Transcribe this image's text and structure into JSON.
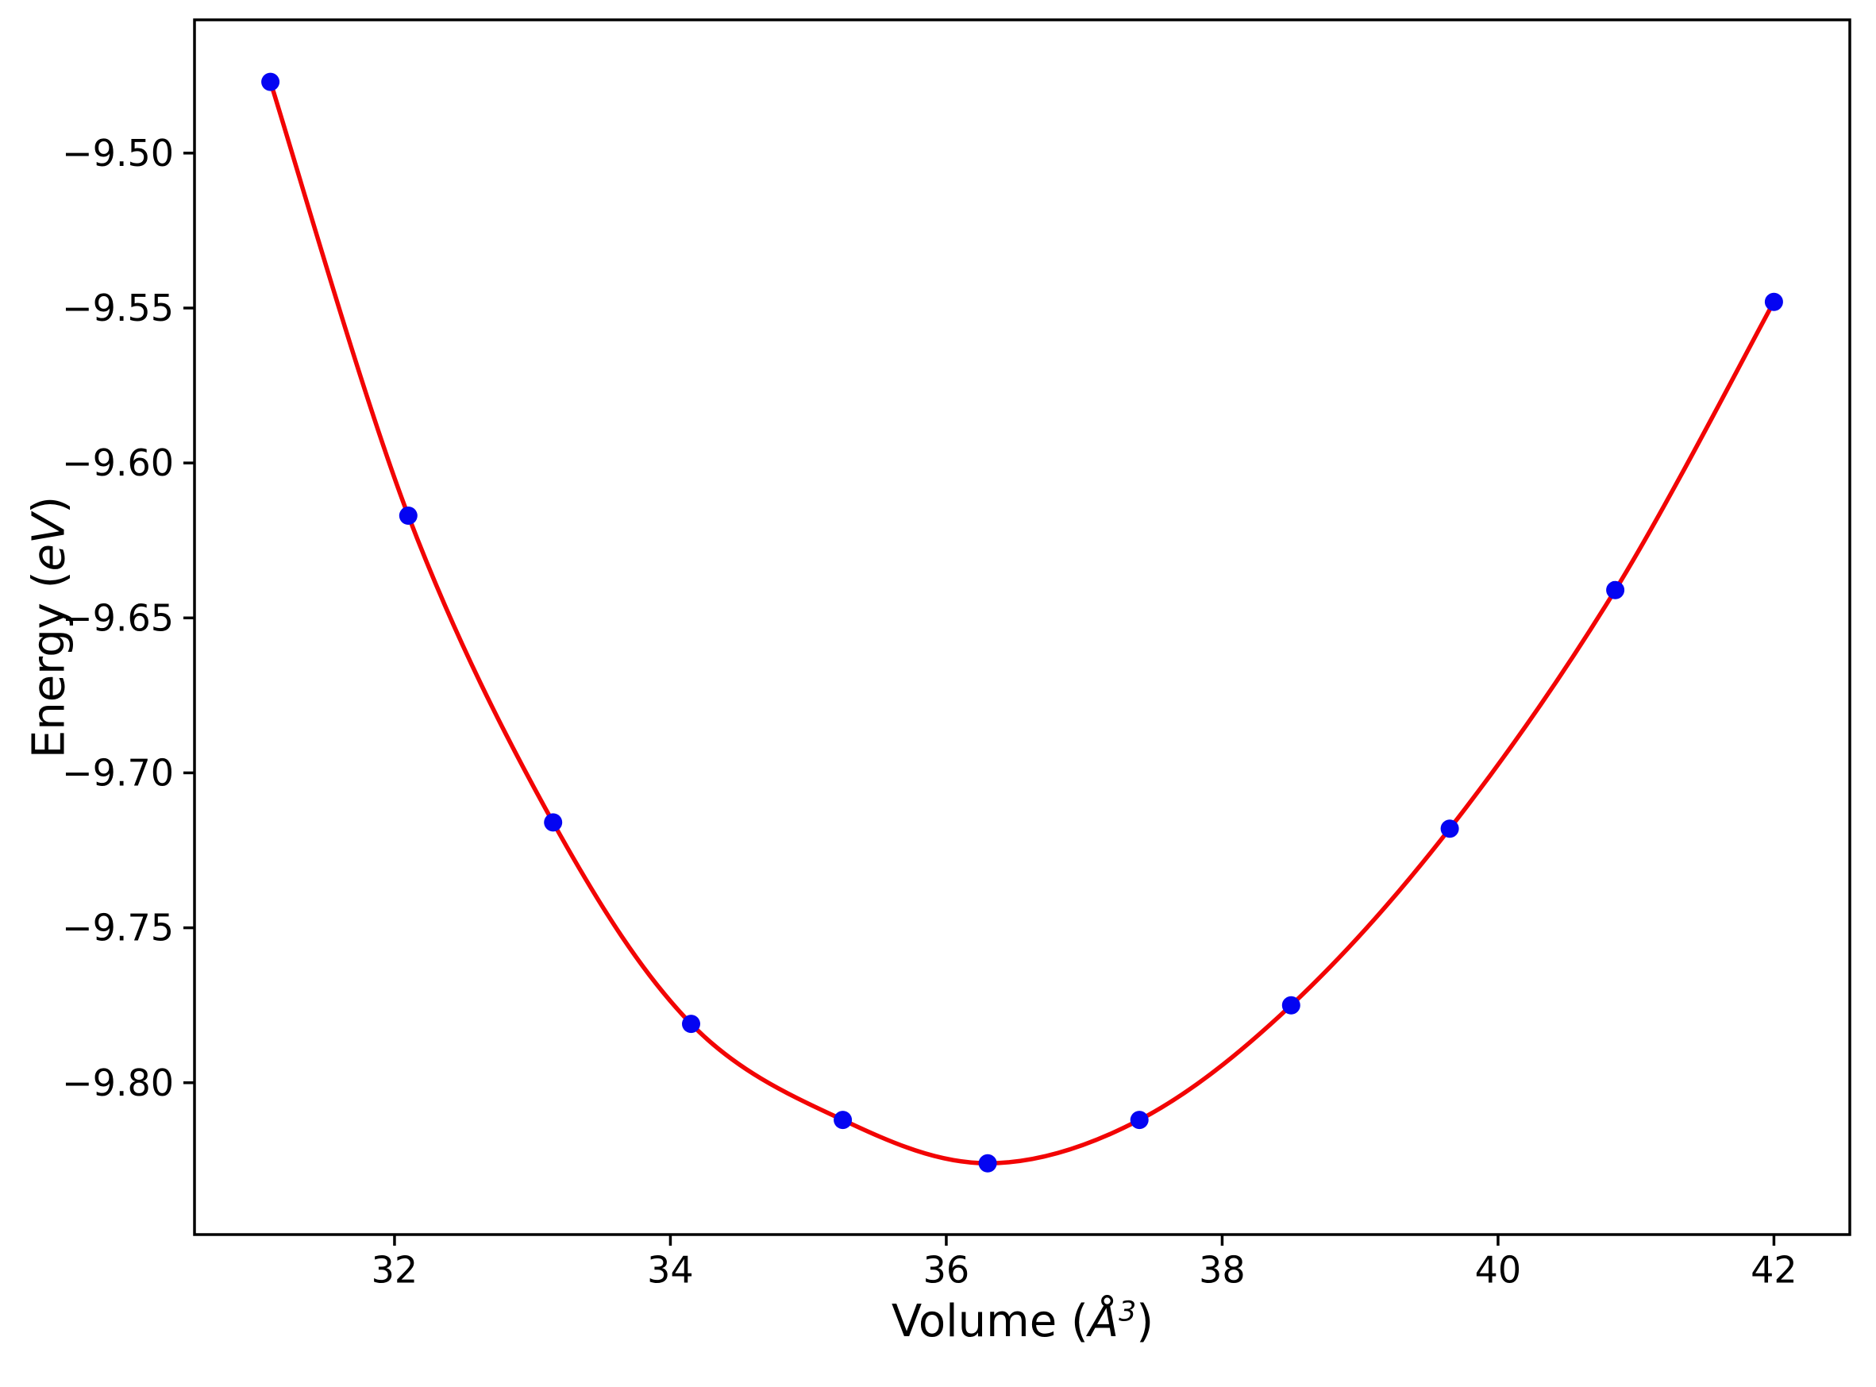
{
  "chart_data": {
    "type": "scatter",
    "title": "",
    "xlabel": "Volume (Å³)",
    "xlabel_parts": {
      "prefix": "Volume (",
      "symbol": "Å",
      "exponent": "3",
      "suffix": ")"
    },
    "ylabel": "Energy (eV)",
    "ylabel_parts": {
      "prefix": "Energy (",
      "math": "eV",
      "suffix": ")"
    },
    "xlim": [
      30.55,
      42.55
    ],
    "ylim": [
      -9.849,
      -9.457
    ],
    "grid": false,
    "legend": "none",
    "xticks": {
      "values": [
        32,
        34,
        36,
        38,
        40,
        42
      ],
      "labels": [
        "32",
        "34",
        "36",
        "38",
        "40",
        "42"
      ]
    },
    "yticks": {
      "values": [
        -9.5,
        -9.55,
        -9.6,
        -9.65,
        -9.7,
        -9.75,
        -9.8
      ],
      "labels": [
        "−9.50",
        "−9.55",
        "−9.60",
        "−9.65",
        "−9.70",
        "−9.75",
        "−9.80"
      ]
    },
    "series": [
      {
        "name": "calculated-energies",
        "type": "scatter",
        "marker": "circle",
        "color": "#0404f2",
        "x": [
          31.1,
          32.1,
          33.15,
          34.15,
          35.25,
          36.3,
          37.4,
          38.5,
          39.65,
          40.85,
          42.0
        ],
        "y": [
          -9.477,
          -9.617,
          -9.716,
          -9.781,
          -9.812,
          -9.826,
          -9.812,
          -9.775,
          -9.718,
          -9.641,
          -9.548
        ]
      },
      {
        "name": "eos-fit",
        "type": "line",
        "style": "smooth",
        "color": "#f20404",
        "x": [
          31.1,
          32.1,
          33.15,
          34.15,
          35.25,
          36.3,
          37.4,
          38.5,
          39.65,
          40.85,
          42.0
        ],
        "y": [
          -9.477,
          -9.617,
          -9.716,
          -9.781,
          -9.812,
          -9.826,
          -9.812,
          -9.775,
          -9.718,
          -9.641,
          -9.548
        ]
      }
    ]
  }
}
